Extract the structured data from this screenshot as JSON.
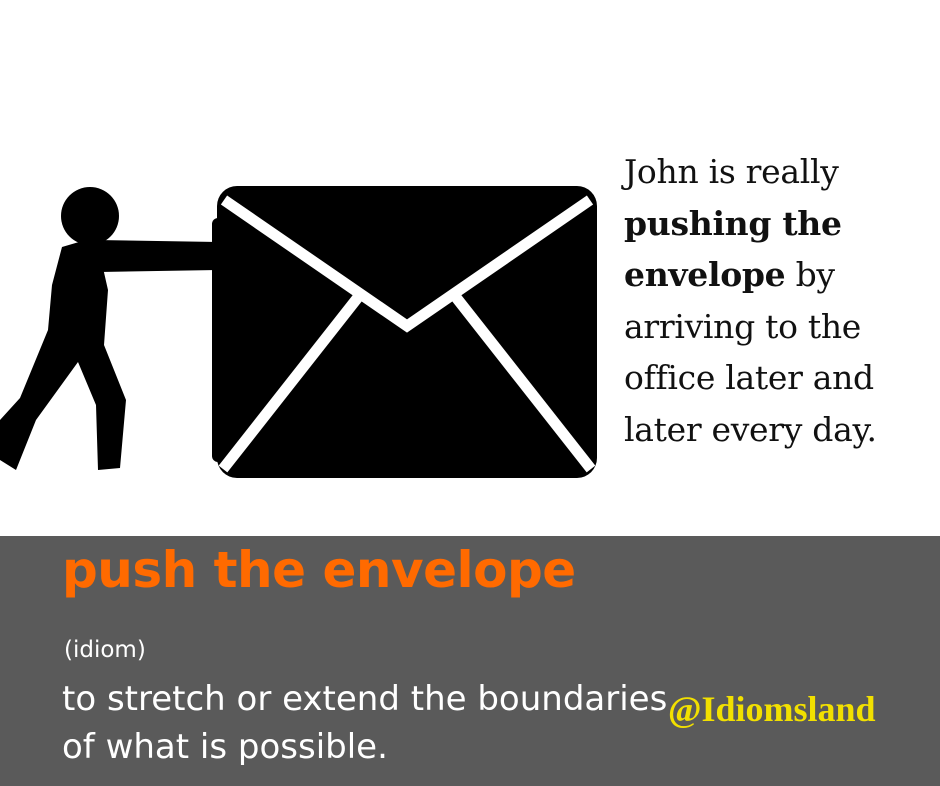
{
  "example": {
    "part1": "John is really",
    "bold": "pushing the envelope",
    "part2": "by arriving to the office later and later  every day."
  },
  "idiom": {
    "term": "push the envelope",
    "part_of_speech": "(idiom)",
    "definition": "to stretch or extend the boundaries of what is possible."
  },
  "handle": "@Idiomsland",
  "colors": {
    "term": "#ff6a00",
    "band": "#5a5a5a",
    "handle": "#f2e000",
    "definition": "#ffffff",
    "icon": "#000000"
  }
}
